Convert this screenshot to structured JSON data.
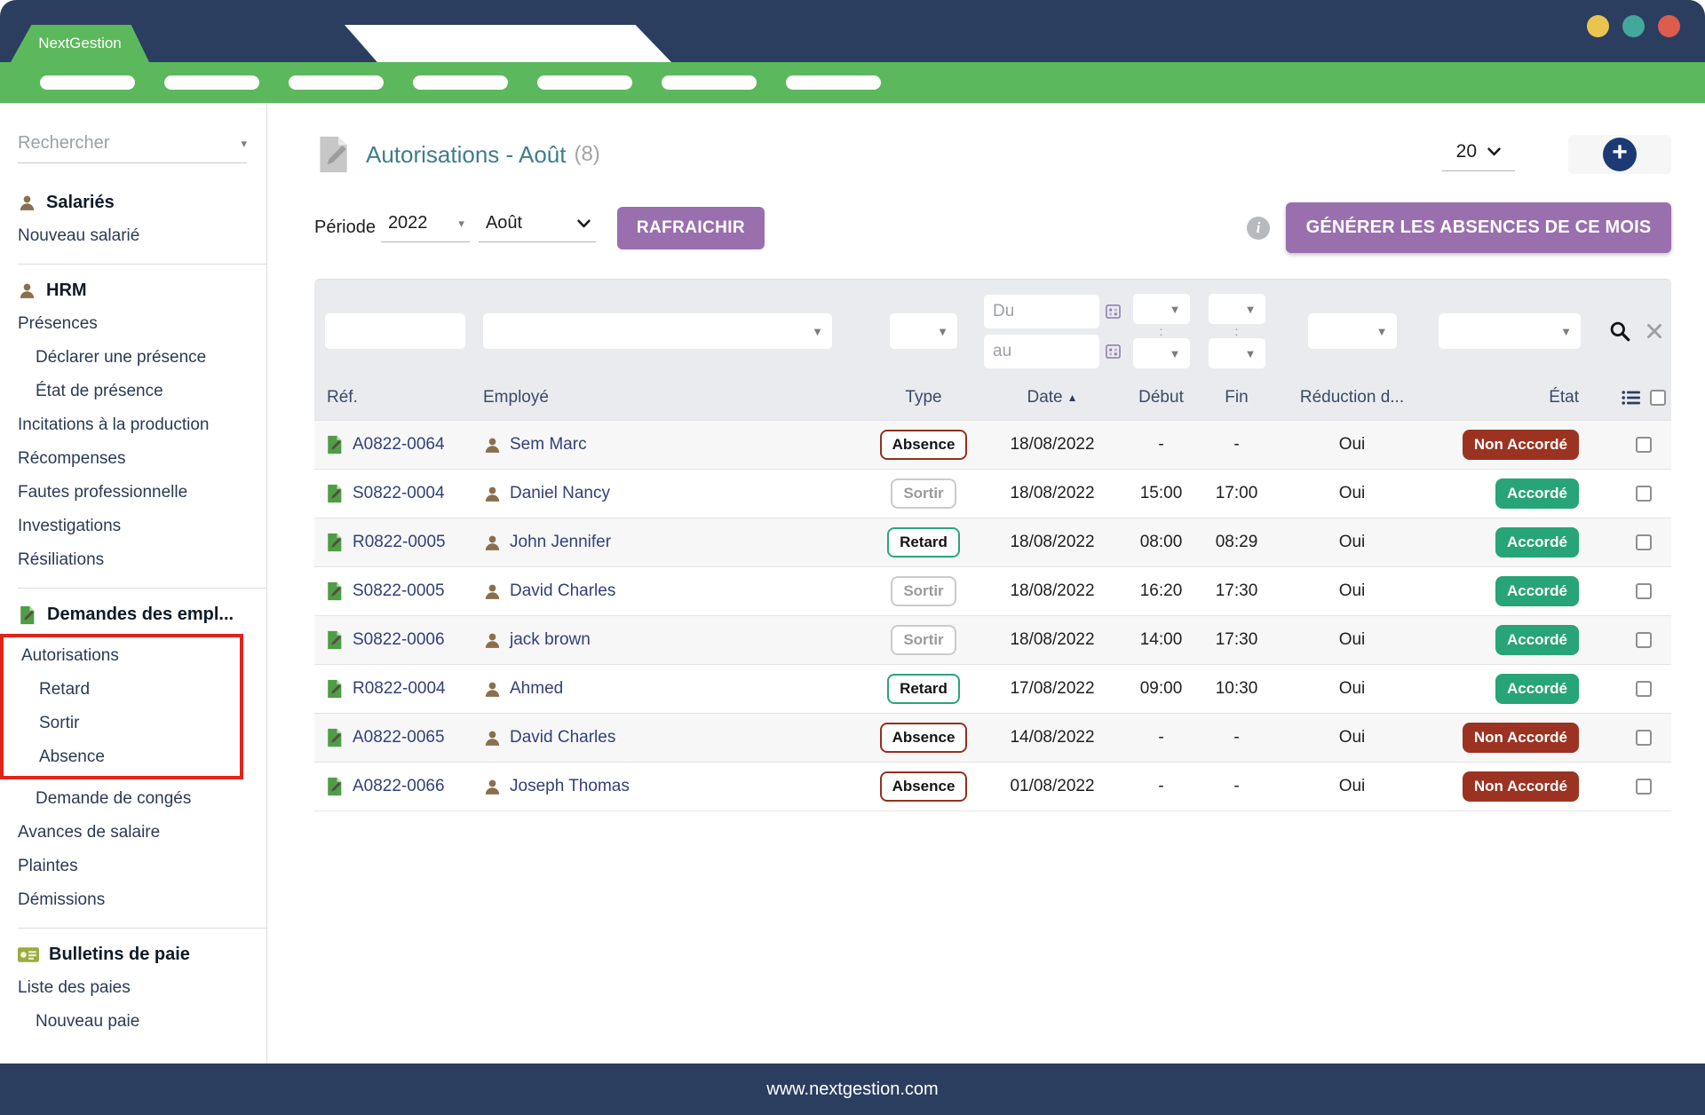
{
  "window": {
    "brand": "NextGestion",
    "nav_pill_count": 7,
    "traffic_lights": [
      {
        "name": "yellow",
        "color": "#eac54e"
      },
      {
        "name": "teal",
        "color": "#43a79b"
      },
      {
        "name": "red",
        "color": "#dd5c4c"
      }
    ]
  },
  "sidebar": {
    "search_placeholder": "Rechercher",
    "sections": [
      {
        "header": {
          "label": "Salariés",
          "icon": "person"
        },
        "items": [
          {
            "label": "Nouveau salarié",
            "indent": 0
          }
        ]
      },
      {
        "header": {
          "label": "HRM",
          "icon": "person"
        },
        "items": [
          {
            "label": "Présences",
            "indent": 0
          },
          {
            "label": "Déclarer une présence",
            "indent": 1
          },
          {
            "label": "État de présence",
            "indent": 1
          },
          {
            "label": "Incitations à la production",
            "indent": 0
          },
          {
            "label": "Récompenses",
            "indent": 0
          },
          {
            "label": "Fautes professionnelle",
            "indent": 0
          },
          {
            "label": "Investigations",
            "indent": 0
          },
          {
            "label": "Résiliations",
            "indent": 0
          }
        ]
      },
      {
        "header": {
          "label": "Demandes des empl...",
          "icon": "request"
        },
        "items": [
          {
            "label": "Autorisations",
            "indent": 0,
            "box": true
          },
          {
            "label": "Retard",
            "indent": 1,
            "box": true
          },
          {
            "label": "Sortir",
            "indent": 1,
            "box": true
          },
          {
            "label": "Absence",
            "indent": 1,
            "box": true
          },
          {
            "label": "Demande de congés",
            "indent": 1
          },
          {
            "label": "Avances de salaire",
            "indent": 0
          },
          {
            "label": "Plaintes",
            "indent": 0
          },
          {
            "label": "Démissions",
            "indent": 0
          }
        ]
      },
      {
        "header": {
          "label": "Bulletins de paie",
          "icon": "payslip"
        },
        "items": [
          {
            "label": "Liste des paies",
            "indent": 0
          },
          {
            "label": "Nouveau paie",
            "indent": 1
          }
        ]
      }
    ]
  },
  "toolbar": {
    "title": "Autorisations - Août",
    "count": "(8)",
    "page_size": "20",
    "period_label": "Période",
    "year": "2022",
    "month": "Août",
    "refresh_label": "RAFRAICHIR",
    "generate_label": "GÉNÉRER LES ABSENCES DE CE MOIS"
  },
  "filters": {
    "du_placeholder": "Du",
    "au_placeholder": "au"
  },
  "table": {
    "columns": {
      "ref": "Réf.",
      "employee": "Employé",
      "type": "Type",
      "date": "Date",
      "start": "Début",
      "end": "Fin",
      "reduction": "Réduction d...",
      "state": "État"
    },
    "sort_column": "date",
    "rows": [
      {
        "ref": "A0822-0064",
        "employee": "Sem Marc",
        "type": "Absence",
        "type_variant": "absence",
        "date": "18/08/2022",
        "start": "-",
        "end": "-",
        "reduction": "Oui",
        "status": "Non Accordé",
        "status_variant": "denied"
      },
      {
        "ref": "S0822-0004",
        "employee": "Daniel Nancy",
        "type": "Sortir",
        "type_variant": "sortir",
        "date": "18/08/2022",
        "start": "15:00",
        "end": "17:00",
        "reduction": "Oui",
        "status": "Accordé",
        "status_variant": "granted"
      },
      {
        "ref": "R0822-0005",
        "employee": "John Jennifer",
        "type": "Retard",
        "type_variant": "retard",
        "date": "18/08/2022",
        "start": "08:00",
        "end": "08:29",
        "reduction": "Oui",
        "status": "Accordé",
        "status_variant": "granted"
      },
      {
        "ref": "S0822-0005",
        "employee": "David Charles",
        "type": "Sortir",
        "type_variant": "sortir",
        "date": "18/08/2022",
        "start": "16:20",
        "end": "17:30",
        "reduction": "Oui",
        "status": "Accordé",
        "status_variant": "granted"
      },
      {
        "ref": "S0822-0006",
        "employee": "jack brown",
        "type": "Sortir",
        "type_variant": "sortir",
        "date": "18/08/2022",
        "start": "14:00",
        "end": "17:30",
        "reduction": "Oui",
        "status": "Accordé",
        "status_variant": "granted"
      },
      {
        "ref": "R0822-0004",
        "employee": "Ahmed",
        "type": "Retard",
        "type_variant": "retard",
        "date": "17/08/2022",
        "start": "09:00",
        "end": "10:30",
        "reduction": "Oui",
        "status": "Accordé",
        "status_variant": "granted"
      },
      {
        "ref": "A0822-0065",
        "employee": "David Charles",
        "type": "Absence",
        "type_variant": "absence",
        "date": "14/08/2022",
        "start": "-",
        "end": "-",
        "reduction": "Oui",
        "status": "Non Accordé",
        "status_variant": "denied"
      },
      {
        "ref": "A0822-0066",
        "employee": "Joseph Thomas",
        "type": "Absence",
        "type_variant": "absence",
        "date": "01/08/2022",
        "start": "-",
        "end": "-",
        "reduction": "Oui",
        "status": "Non Accordé",
        "status_variant": "denied"
      }
    ]
  },
  "footer": {
    "url": "www.nextgestion.com"
  },
  "colors": {
    "navy": "#2b3e5f",
    "green": "#5cb85c",
    "purple": "#9a6fae",
    "granted": "#27a478",
    "denied": "#9c3322",
    "highlight_box": "#e3231a",
    "title_teal": "#3e7d8c",
    "link_navy": "#32407a"
  }
}
